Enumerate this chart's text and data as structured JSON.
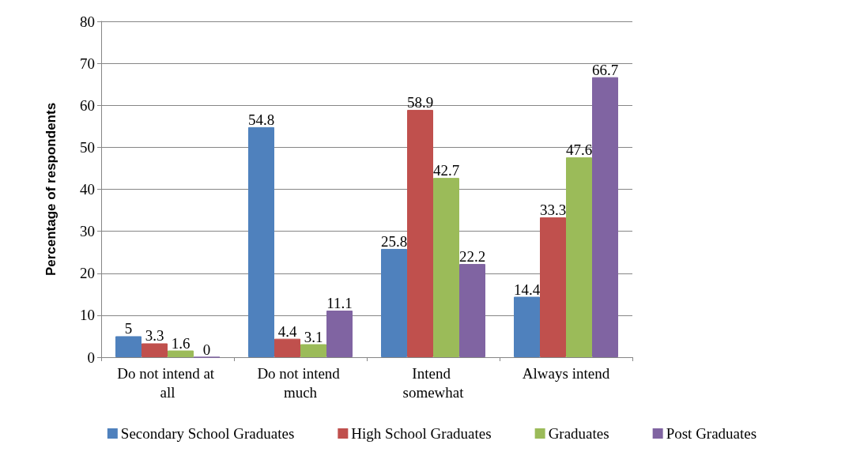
{
  "chart_data": {
    "type": "bar",
    "ylabel": "Percentage of respondents",
    "categories": [
      "Do not intend at all",
      "Do not intend much",
      "Intend somewhat",
      "Always intend"
    ],
    "series": [
      {
        "name": "Secondary School Graduates",
        "color": "#4f81bd",
        "values": [
          5,
          54.8,
          25.8,
          14.4
        ]
      },
      {
        "name": "High School Graduates",
        "color": "#c0504d",
        "values": [
          3.3,
          4.4,
          58.9,
          33.3
        ]
      },
      {
        "name": "Graduates",
        "color": "#9bbb59",
        "values": [
          1.6,
          3.1,
          42.7,
          47.6
        ]
      },
      {
        "name": "Post Graduates",
        "color": "#8064a2",
        "values": [
          0,
          11.1,
          22.2,
          66.7
        ]
      }
    ],
    "ylim": [
      0,
      80
    ],
    "yticks": [
      0,
      10,
      20,
      30,
      40,
      50,
      60,
      70,
      80
    ],
    "grid": "y",
    "legend": "bottom",
    "data_labels": true
  }
}
